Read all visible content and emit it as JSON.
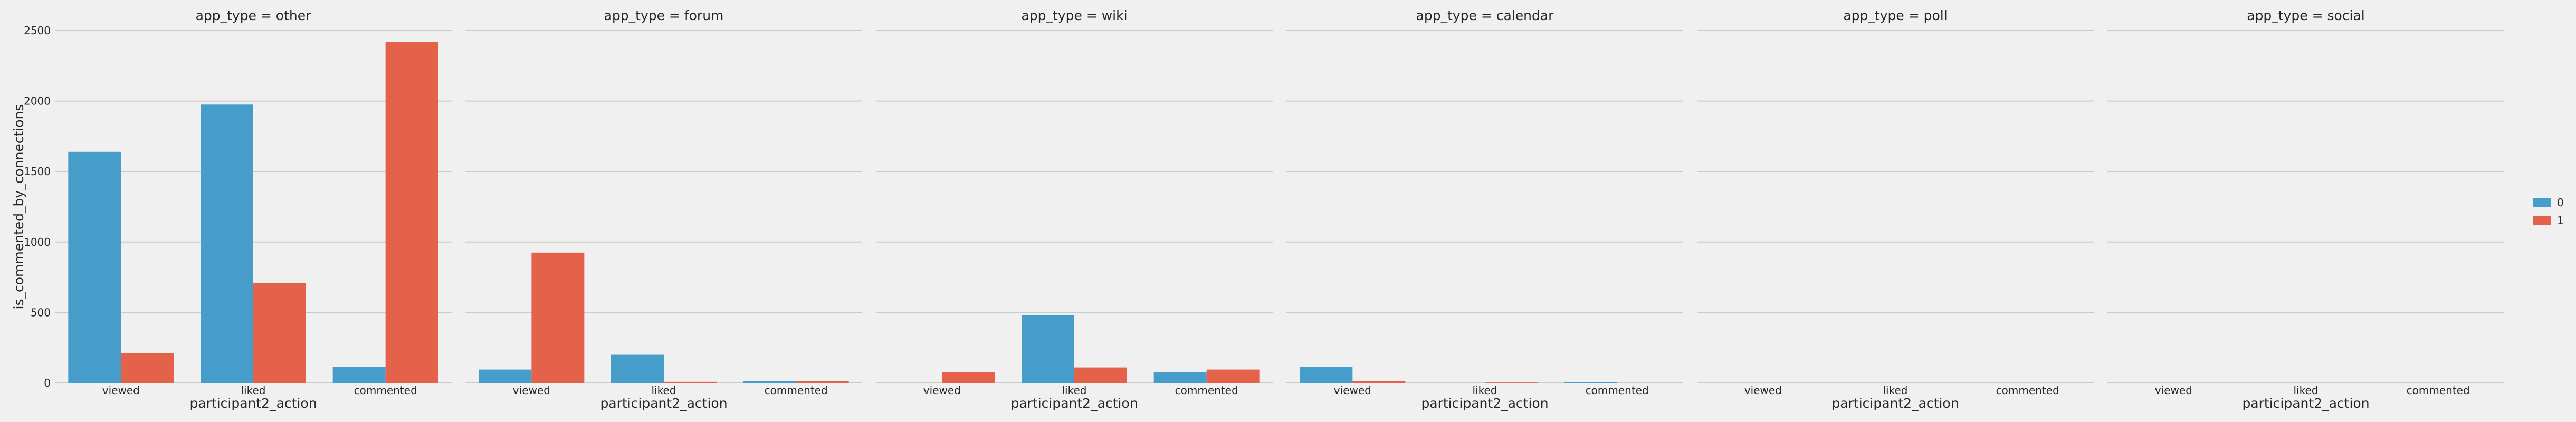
{
  "chart_data": {
    "type": "bar",
    "facet_variable": "app_type",
    "facets": [
      {
        "title": "app_type = other",
        "series": [
          {
            "name": "0",
            "values": [
              1640,
              1975,
              115
            ]
          },
          {
            "name": "1",
            "values": [
              210,
              710,
              2420
            ]
          }
        ]
      },
      {
        "title": "app_type = forum",
        "series": [
          {
            "name": "0",
            "values": [
              95,
              200,
              15
            ]
          },
          {
            "name": "1",
            "values": [
              925,
              8,
              12
            ]
          }
        ]
      },
      {
        "title": "app_type = wiki",
        "series": [
          {
            "name": "0",
            "values": [
              0,
              480,
              75
            ]
          },
          {
            "name": "1",
            "values": [
              75,
              110,
              95
            ]
          }
        ]
      },
      {
        "title": "app_type = calendar",
        "series": [
          {
            "name": "0",
            "values": [
              115,
              0,
              5
            ]
          },
          {
            "name": "1",
            "values": [
              15,
              3,
              0
            ]
          }
        ]
      },
      {
        "title": "app_type = poll",
        "series": [
          {
            "name": "0",
            "values": [
              0,
              0,
              0
            ]
          },
          {
            "name": "1",
            "values": [
              0,
              0,
              0
            ]
          }
        ]
      },
      {
        "title": "app_type = social",
        "series": [
          {
            "name": "0",
            "values": [
              0,
              0,
              0
            ]
          },
          {
            "name": "1",
            "values": [
              0,
              0,
              0
            ]
          }
        ]
      }
    ],
    "categories": [
      "viewed",
      "liked",
      "commented"
    ],
    "xlabel": "participant2_action",
    "ylabel": "is_commented_by_connections",
    "ylim": [
      0,
      2500
    ],
    "yticks": [
      0,
      500,
      1000,
      1500,
      2000,
      2500
    ],
    "grid": true,
    "legend": {
      "placement": "right",
      "entries": [
        "0",
        "1"
      ]
    },
    "colors": {
      "0": "#479dca",
      "1": "#e4624a"
    }
  }
}
